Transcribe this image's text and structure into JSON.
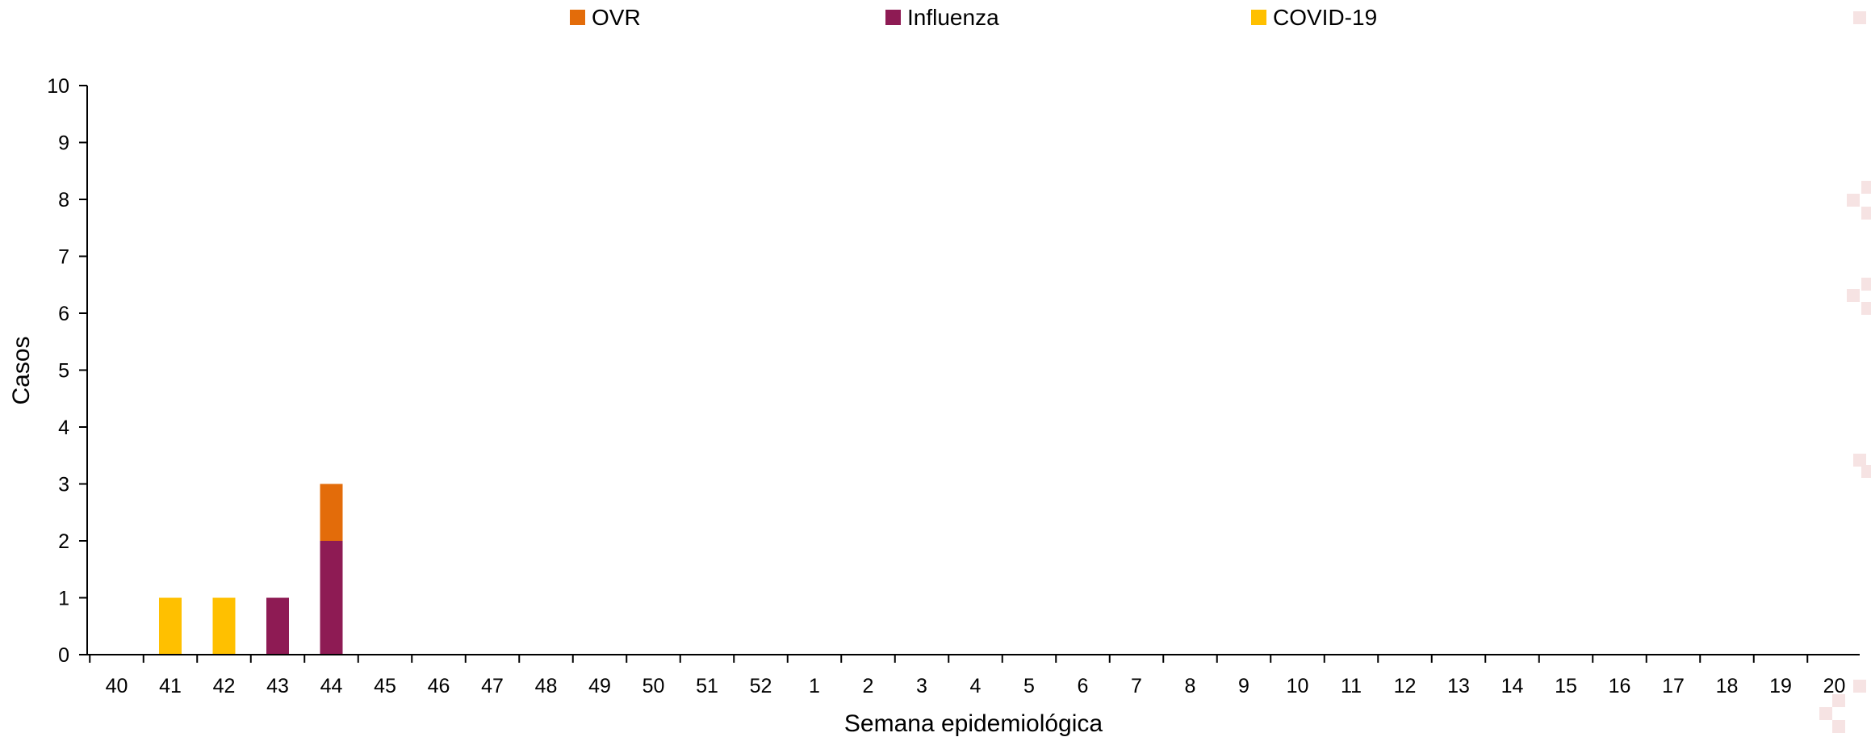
{
  "chart_data": {
    "type": "bar",
    "stacked": true,
    "categories": [
      "40",
      "41",
      "42",
      "43",
      "44",
      "45",
      "46",
      "47",
      "48",
      "49",
      "50",
      "51",
      "52",
      "1",
      "2",
      "3",
      "4",
      "5",
      "6",
      "7",
      "8",
      "9",
      "10",
      "11",
      "12",
      "13",
      "14",
      "15",
      "16",
      "17",
      "18",
      "19",
      "20"
    ],
    "series": [
      {
        "name": "OVR",
        "color": "#E36C0A",
        "values": [
          0,
          0,
          0,
          0,
          1,
          0,
          0,
          0,
          0,
          0,
          0,
          0,
          0,
          0,
          0,
          0,
          0,
          0,
          0,
          0,
          0,
          0,
          0,
          0,
          0,
          0,
          0,
          0,
          0,
          0,
          0,
          0,
          0
        ]
      },
      {
        "name": "Influenza",
        "color": "#8E1B54",
        "values": [
          0,
          0,
          0,
          1,
          2,
          0,
          0,
          0,
          0,
          0,
          0,
          0,
          0,
          0,
          0,
          0,
          0,
          0,
          0,
          0,
          0,
          0,
          0,
          0,
          0,
          0,
          0,
          0,
          0,
          0,
          0,
          0,
          0
        ]
      },
      {
        "name": "COVID-19",
        "color": "#FFC000",
        "values": [
          0,
          1,
          1,
          0,
          0,
          0,
          0,
          0,
          0,
          0,
          0,
          0,
          0,
          0,
          0,
          0,
          0,
          0,
          0,
          0,
          0,
          0,
          0,
          0,
          0,
          0,
          0,
          0,
          0,
          0,
          0,
          0,
          0
        ]
      }
    ],
    "stack_order": [
      "COVID-19",
      "Influenza",
      "OVR"
    ],
    "xlabel": "Semana epidemiológica",
    "ylabel": "Casos",
    "ylim": [
      0,
      10
    ],
    "yticks": [
      0,
      1,
      2,
      3,
      4,
      5,
      6,
      7,
      8,
      9,
      10
    ],
    "legend_position": "top",
    "grid": false
  }
}
